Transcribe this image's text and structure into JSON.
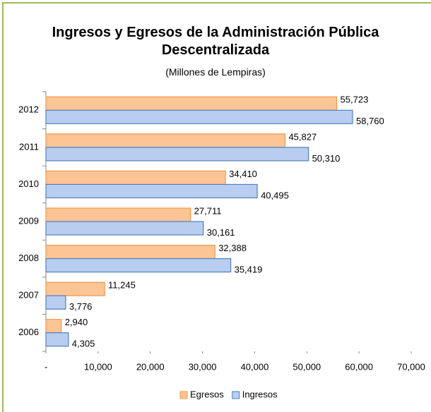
{
  "chart_data": {
    "type": "hbar",
    "title": "Ingresos y Egresos de la Administración Pública Descentralizada",
    "subtitle": "(Millones de Lempiras)",
    "categories": [
      "2012",
      "2011",
      "2010",
      "2009",
      "2008",
      "2007",
      "2006"
    ],
    "series": [
      {
        "name": "Egresos",
        "color": "#f79646",
        "values": [
          55723,
          45827,
          34410,
          27711,
          32388,
          11245,
          2940
        ],
        "value_labels": [
          "55,723",
          "45,827",
          "34,410",
          "27,711",
          "32,388",
          "11,245",
          "2,940"
        ]
      },
      {
        "name": "Ingresos",
        "color": "#4f81bd",
        "values": [
          58760,
          50310,
          40495,
          30161,
          35419,
          3776,
          4305
        ],
        "value_labels": [
          "58,760",
          "50,310",
          "40,495",
          "30,161",
          "35,419",
          "3,776",
          "4,305"
        ]
      }
    ],
    "xlim": [
      0,
      70000
    ],
    "xticks": [
      {
        "value": 0,
        "label": "-"
      },
      {
        "value": 10000,
        "label": "10,000"
      },
      {
        "value": 20000,
        "label": "20,000"
      },
      {
        "value": 30000,
        "label": "30,000"
      },
      {
        "value": 40000,
        "label": "40,000"
      },
      {
        "value": 50000,
        "label": "50,000"
      },
      {
        "value": 60000,
        "label": "60,000"
      },
      {
        "value": 70000,
        "label": "70,000"
      }
    ],
    "legend": "bottom",
    "grid": false
  }
}
